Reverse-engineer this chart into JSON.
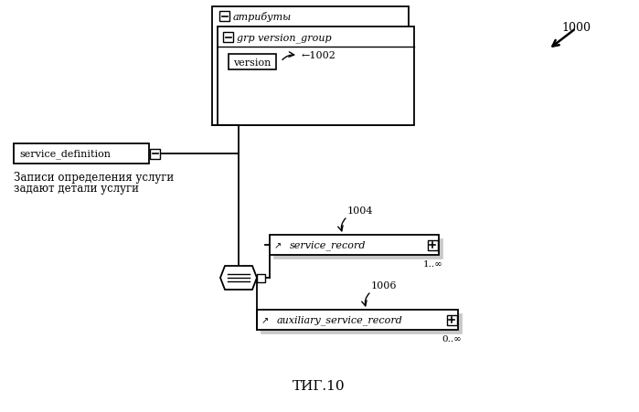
{
  "bg_color": "#ffffff",
  "fig_width": 6.99,
  "fig_height": 4.52,
  "dpi": 100,
  "title": "ΤИГ.10",
  "title_fontsize": 11,
  "label_1000": "1000",
  "label_1002": "←1002",
  "label_1004": "1004",
  "label_1006": "1006",
  "service_definition_label": "service_definition",
  "attributes_label": "атрибуты",
  "grp_label": "grp version_group",
  "version_label": "version",
  "service_record_label": "service_record",
  "aux_record_label": "auxiliary_service_record",
  "footnote_line1": "Записи определения услуги",
  "footnote_line2": "задают детали услуги",
  "multiplicity_1": "1..∞",
  "multiplicity_2": "0..∞"
}
